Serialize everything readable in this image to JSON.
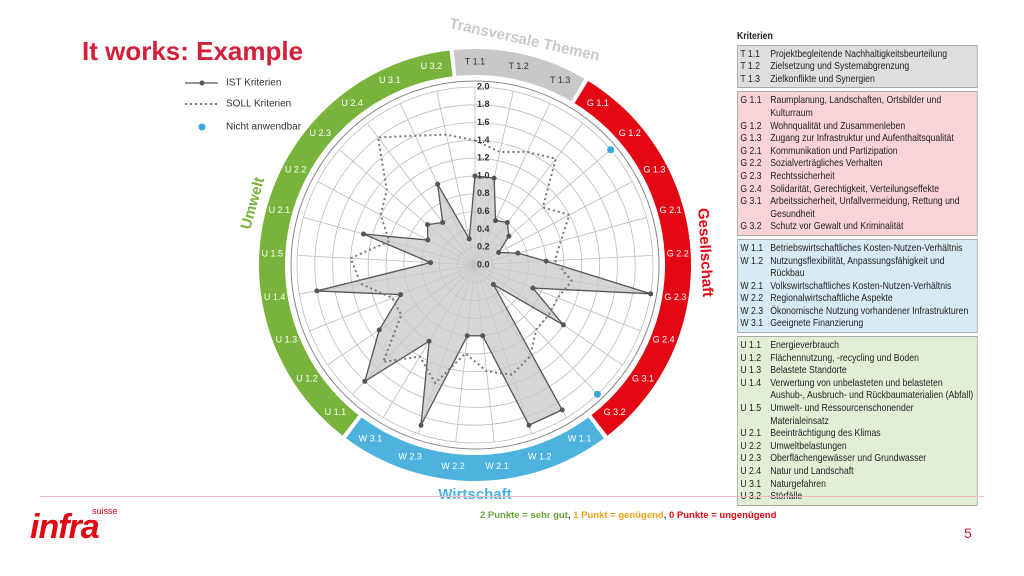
{
  "slide": {
    "title": "It works: Example",
    "page": "5",
    "logo": {
      "name": "infra",
      "sub": "suisse"
    },
    "note": [
      {
        "text": "2 Punkte = sehr gut",
        "color": "#6aa33a"
      },
      {
        "text": ", ",
        "color": "#333333"
      },
      {
        "text": "1 Punkt = genügend",
        "color": "#e8a317"
      },
      {
        "text": ", ",
        "color": "#333333"
      },
      {
        "text": "0 Punkte = ungenügend",
        "color": "#e30613"
      }
    ]
  },
  "chart_data": {
    "type": "radar",
    "categories": [
      "T 1.1",
      "T 1.2",
      "T 1.3",
      "G 1.1",
      "G 1.2",
      "G 1.3",
      "G 2.1",
      "G 2.2",
      "G 2.3",
      "G 2.4",
      "G 3.1",
      "G 3.2",
      "W 1.1",
      "W 1.2",
      "W 2.1",
      "W 2.2",
      "W 2.3",
      "W 3.1",
      "U 1.1",
      "U 1.2",
      "U 1.3",
      "U 1.4",
      "U 1.5",
      "U 2.1",
      "U 2.2",
      "U 2.3",
      "U 2.4",
      "U 3.1",
      "U 3.2"
    ],
    "groups": [
      {
        "name": "Transversale Themen",
        "color": "#c8c8c8"
      },
      {
        "name": "Gesellschaft",
        "color": "#e30613"
      },
      {
        "name": "Wirtschaft",
        "color": "#4db3de"
      },
      {
        "name": "Umwelt",
        "color": "#78b43c"
      }
    ],
    "series": [
      {
        "name": "IST Kriterien",
        "color": "#555555",
        "style": "solid",
        "values": [
          1.0,
          1.0,
          0.55,
          0.6,
          0.5,
          0.3,
          0.5,
          0.8,
          2.0,
          0.7,
          1.2,
          0.3,
          1.9,
          1.9,
          0.8,
          0.8,
          1.9,
          1.0,
          1.8,
          1.3,
          0.9,
          1.8,
          0.5,
          1.3,
          0.6,
          0.7,
          0.6,
          1.0,
          0.3
        ]
      },
      {
        "name": "SOLL Kriterien",
        "color": "#777777",
        "style": "dotted",
        "values": [
          1.4,
          1.3,
          1.4,
          1.5,
          1.0,
          1.2,
          1.0,
          0.9,
          1.1,
          1.0,
          1.0,
          1.0,
          1.2,
          1.3,
          1.2,
          1.0,
          1.4,
          1.2,
          1.5,
          1.0,
          1.0,
          1.3,
          1.4,
          1.0,
          1.2,
          1.3,
          1.8,
          1.6,
          1.5
        ]
      },
      {
        "name": "Nicht anwendbar",
        "color": "#3aa6dd",
        "style": "dot",
        "values": [
          null,
          null,
          null,
          null,
          2.0,
          null,
          null,
          null,
          null,
          null,
          null,
          2.0,
          null,
          null,
          null,
          null,
          null,
          null,
          null,
          null,
          null,
          null,
          null,
          null,
          null,
          null,
          null,
          null,
          null
        ]
      }
    ],
    "ylim": [
      0,
      2
    ],
    "yticks": [
      {
        "value": 0,
        "label": "0.0"
      },
      0.2,
      0.4,
      0.6,
      0.8,
      {
        "value": 1,
        "label": "1.0"
      },
      1.2,
      1.4,
      1.6,
      1.8,
      {
        "value": 2,
        "label": "2.0"
      }
    ],
    "grid": true
  },
  "criteria": {
    "title": "Kriterien",
    "sections": [
      {
        "color": "#dedede",
        "items": [
          {
            "code": "T 1.1",
            "text": "Projektbegleitende Nachhaltigkeitsbeurteilung"
          },
          {
            "code": "T 1.2",
            "text": "Zielsetzung und Systemabgrenzung"
          },
          {
            "code": "T 1.3",
            "text": "Zielkonflikte und Synergien"
          }
        ]
      },
      {
        "color": "#f9d3d6",
        "items": [
          {
            "code": "G 1.1",
            "text": "Raumplanung, Landschaften, Ortsbilder und Kulturraum"
          },
          {
            "code": "G 1.2",
            "text": "Wohnqualität und Zusammenleben"
          },
          {
            "code": "G 1.3",
            "text": "Zugang zur Infrastruktur und Aufenthaltsqualität"
          },
          {
            "code": "G 2.1",
            "text": "Kommunikation und Partizipation"
          },
          {
            "code": "G 2.2",
            "text": "Sozialverträgliches Verhalten"
          },
          {
            "code": "G 2.3",
            "text": "Rechtssicherheit"
          },
          {
            "code": "G 2.4",
            "text": "Solidarität, Gerechtigkeit, Verteilungseffekte"
          },
          {
            "code": "G 3.1",
            "text": "Arbeitssicherheit, Unfallvermeidung, Rettung und Gesundheit"
          },
          {
            "code": "G 3.2",
            "text": "Schutz vor Gewalt und Kriminalität"
          }
        ]
      },
      {
        "color": "#d6ebf6",
        "items": [
          {
            "code": "W 1.1",
            "text": "Betriebswirtschaftliches Kosten-Nutzen-Verhältnis"
          },
          {
            "code": "W 1.2",
            "text": "Nutzungsflexibilität, Anpassungsfähigkeit und Rückbau"
          },
          {
            "code": "W 2.1",
            "text": "Volkswirtschaftliches Kosten-Nutzen-Verhältnis"
          },
          {
            "code": "W 2.2",
            "text": "Regionalwirtschaftliche Aspekte"
          },
          {
            "code": "W 2.3",
            "text": "Ökonomische Nutzung vorhandener Infrastrukturen"
          },
          {
            "code": "W 3.1",
            "text": "Geeignete Finanzierung"
          }
        ]
      },
      {
        "color": "#e3efd5",
        "items": [
          {
            "code": "U 1.1",
            "text": "Energieverbrauch"
          },
          {
            "code": "U 1.2",
            "text": "Flächennutzung, -recycling und Boden"
          },
          {
            "code": "U 1.3",
            "text": "Belastete Standorte"
          },
          {
            "code": "U 1.4",
            "text": "Verwertung von unbelasteten und belasteten Aushub-, Ausbruch- und Rückbaumaterialien (Abfall)"
          },
          {
            "code": "U 1.5",
            "text": "Umwelt- und Ressourcenschonender Materialeinsatz"
          },
          {
            "code": "U 2.1",
            "text": "Beeinträchtigung des Klimas"
          },
          {
            "code": "U 2.2",
            "text": "Umweltbelastungen"
          },
          {
            "code": "U 2.3",
            "text": "Oberflächengewässer und Grundwasser"
          },
          {
            "code": "U 2.4",
            "text": "Natur und Landschaft"
          },
          {
            "code": "U 3.1",
            "text": "Naturgefahren"
          },
          {
            "code": "U 3.2",
            "text": "Störfälle"
          }
        ]
      }
    ]
  }
}
